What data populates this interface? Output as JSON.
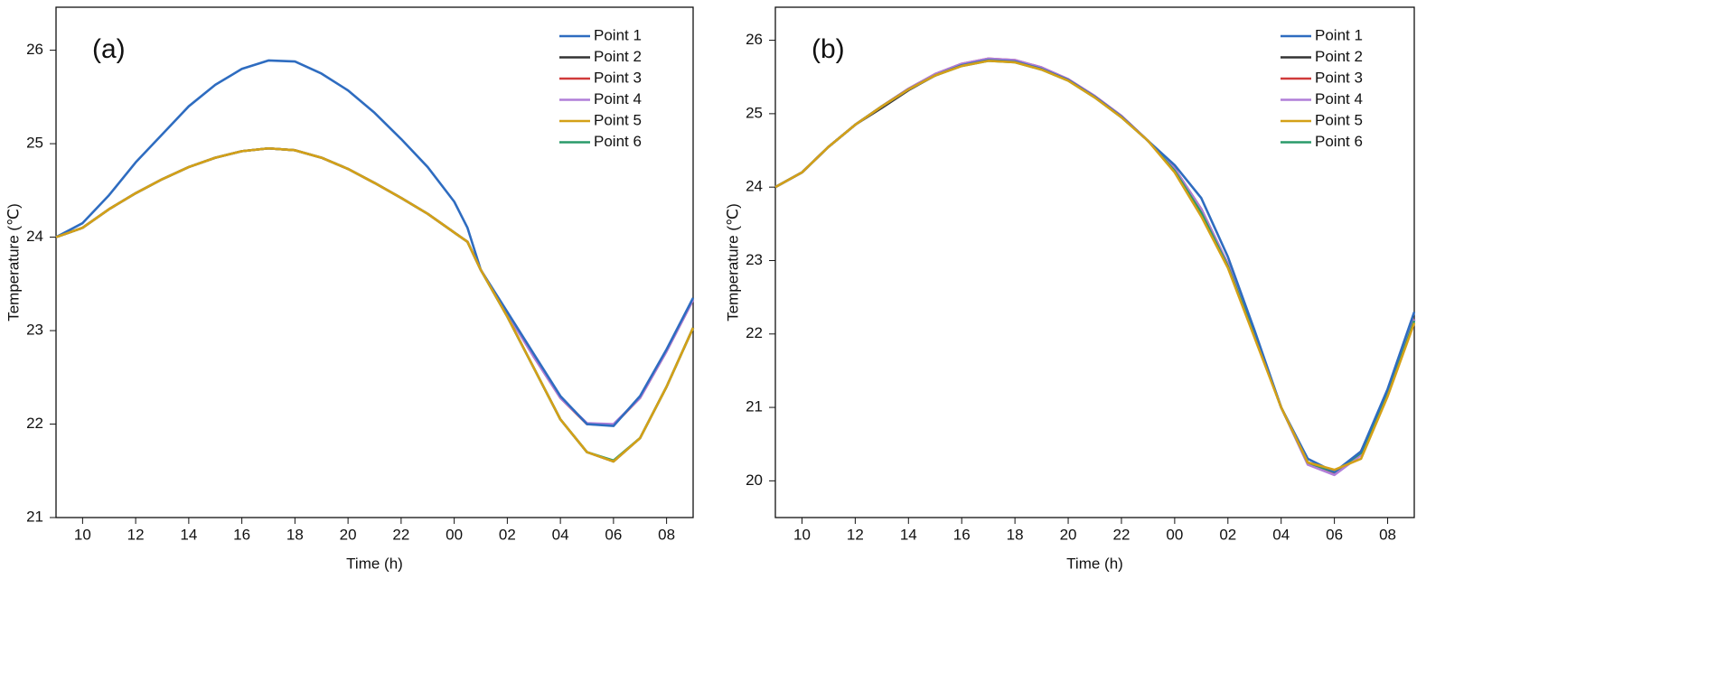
{
  "chart_data": [
    {
      "type": "line",
      "annotation": "(a)",
      "x_label": "Time (h)",
      "y_label": "Temperature (℃)",
      "x": [
        9,
        10,
        11,
        12,
        13,
        14,
        15,
        16,
        17,
        18,
        19,
        20,
        21,
        22,
        23,
        24,
        24.5,
        25,
        26,
        27,
        28,
        29,
        30,
        31,
        32,
        33
      ],
      "xlim": [
        9,
        33
      ],
      "ylim": [
        21,
        26.46
      ],
      "xticks": [
        10,
        12,
        14,
        16,
        18,
        20,
        22,
        {
          "value": 24,
          "label": "00"
        },
        {
          "value": 26,
          "label": "02"
        },
        {
          "value": 28,
          "label": "04"
        },
        {
          "value": 30,
          "label": "06"
        },
        {
          "value": 32,
          "label": "08"
        }
      ],
      "yticks": [
        21,
        22,
        23,
        24,
        25,
        26
      ],
      "legend": "upper right",
      "series": [
        {
          "name": "Point 1",
          "color": "#2e6cc0",
          "values": [
            24.0,
            24.15,
            24.45,
            24.8,
            25.1,
            25.4,
            25.63,
            25.8,
            25.89,
            25.88,
            25.75,
            25.57,
            25.33,
            25.05,
            24.75,
            24.38,
            24.1,
            23.65,
            23.2,
            22.75,
            22.3,
            22.0,
            21.98,
            22.3,
            22.8,
            23.35
          ]
        },
        {
          "name": "Point 2",
          "color": "#333333",
          "values": [
            24.0,
            24.1,
            24.3,
            24.47,
            24.62,
            24.75,
            24.85,
            24.92,
            24.95,
            24.93,
            24.85,
            24.73,
            24.58,
            24.42,
            24.25,
            24.05,
            23.95,
            23.65,
            23.15,
            22.6,
            22.05,
            21.7,
            21.6,
            21.85,
            22.4,
            23.03
          ]
        },
        {
          "name": "Point 3",
          "color": "#d03a3a",
          "values": [
            24.0,
            24.1,
            24.3,
            24.47,
            24.62,
            24.75,
            24.85,
            24.92,
            24.95,
            24.93,
            24.85,
            24.73,
            24.58,
            24.42,
            24.25,
            24.05,
            23.95,
            23.65,
            23.18,
            22.72,
            22.28,
            22.0,
            21.99,
            22.28,
            22.78,
            23.33
          ]
        },
        {
          "name": "Point 4",
          "color": "#b07ed8",
          "values": [
            24.0,
            24.1,
            24.3,
            24.47,
            24.62,
            24.75,
            24.85,
            24.92,
            24.95,
            24.93,
            24.85,
            24.73,
            24.58,
            24.42,
            24.25,
            24.05,
            23.95,
            23.65,
            23.18,
            22.72,
            22.28,
            22.01,
            22.0,
            22.28,
            22.78,
            23.33
          ]
        },
        {
          "name": "Point 5",
          "color": "#d4a017",
          "values": [
            24.0,
            24.1,
            24.3,
            24.47,
            24.62,
            24.75,
            24.85,
            24.92,
            24.95,
            24.93,
            24.85,
            24.73,
            24.58,
            24.42,
            24.25,
            24.05,
            23.95,
            23.65,
            23.15,
            22.6,
            22.05,
            21.7,
            21.6,
            21.85,
            22.4,
            23.03
          ]
        },
        {
          "name": "Point 6",
          "color": "#2a9a6a",
          "values": [
            24.0,
            24.1,
            24.3,
            24.47,
            24.62,
            24.75,
            24.85,
            24.92,
            24.95,
            24.93,
            24.85,
            24.73,
            24.58,
            24.42,
            24.25,
            24.05,
            23.95,
            23.65,
            23.15,
            22.6,
            22.05,
            21.7,
            21.61,
            21.85,
            22.4,
            23.03
          ]
        }
      ]
    },
    {
      "type": "line",
      "annotation": "(b)",
      "x_label": "Time (h)",
      "y_label": "Temperature (℃)",
      "x": [
        9,
        10,
        11,
        12,
        13,
        14,
        15,
        16,
        17,
        18,
        19,
        20,
        21,
        22,
        23,
        24,
        25,
        26,
        27,
        28,
        29,
        30,
        31,
        32,
        33
      ],
      "xlim": [
        9,
        33
      ],
      "ylim": [
        19.5,
        26.45
      ],
      "xticks": [
        10,
        12,
        14,
        16,
        18,
        20,
        22,
        {
          "value": 24,
          "label": "00"
        },
        {
          "value": 26,
          "label": "02"
        },
        {
          "value": 28,
          "label": "04"
        },
        {
          "value": 30,
          "label": "06"
        },
        {
          "value": 32,
          "label": "08"
        }
      ],
      "yticks": [
        20,
        21,
        22,
        23,
        24,
        25,
        26
      ],
      "legend": "upper right",
      "series": [
        {
          "name": "Point 1",
          "color": "#2e6cc0",
          "values": [
            24.0,
            24.2,
            24.55,
            24.85,
            25.1,
            25.33,
            25.52,
            25.66,
            25.73,
            25.71,
            25.61,
            25.46,
            25.23,
            24.96,
            24.63,
            24.3,
            23.85,
            23.05,
            22.05,
            21.0,
            20.3,
            20.12,
            20.4,
            21.25,
            22.3
          ]
        },
        {
          "name": "Point 2",
          "color": "#333333",
          "values": [
            24.0,
            24.2,
            24.55,
            24.85,
            25.08,
            25.32,
            25.52,
            25.66,
            25.73,
            25.71,
            25.61,
            25.46,
            25.23,
            24.96,
            24.63,
            24.25,
            23.7,
            22.95,
            22.0,
            21.0,
            20.25,
            20.1,
            20.4,
            21.2,
            22.2
          ]
        },
        {
          "name": "Point 3",
          "color": "#d03a3a",
          "values": [
            24.0,
            24.2,
            24.55,
            24.85,
            25.1,
            25.34,
            25.54,
            25.68,
            25.75,
            25.73,
            25.63,
            25.47,
            25.24,
            24.97,
            24.63,
            24.25,
            23.7,
            22.95,
            22.0,
            21.0,
            20.25,
            20.1,
            20.4,
            21.2,
            22.2
          ]
        },
        {
          "name": "Point 4",
          "color": "#b07ed8",
          "values": [
            24.0,
            24.2,
            24.55,
            24.85,
            25.1,
            25.34,
            25.54,
            25.68,
            25.75,
            25.73,
            25.63,
            25.47,
            25.24,
            24.97,
            24.63,
            24.25,
            23.7,
            22.95,
            22.0,
            21.0,
            20.22,
            20.08,
            20.35,
            21.2,
            22.2
          ]
        },
        {
          "name": "Point 5",
          "color": "#d4a017",
          "values": [
            24.0,
            24.2,
            24.55,
            24.85,
            25.1,
            25.33,
            25.52,
            25.65,
            25.72,
            25.7,
            25.6,
            25.45,
            25.22,
            24.95,
            24.63,
            24.2,
            23.6,
            22.9,
            21.95,
            21.0,
            20.25,
            20.15,
            20.3,
            21.15,
            22.15
          ]
        },
        {
          "name": "Point 6",
          "color": "#2a9a6a",
          "values": [
            24.0,
            24.2,
            24.55,
            24.85,
            25.1,
            25.33,
            25.52,
            25.65,
            25.72,
            25.7,
            25.6,
            25.45,
            25.22,
            24.95,
            24.63,
            24.22,
            23.65,
            22.92,
            21.98,
            21.0,
            20.25,
            20.12,
            20.38,
            21.18,
            22.18
          ]
        }
      ]
    }
  ]
}
